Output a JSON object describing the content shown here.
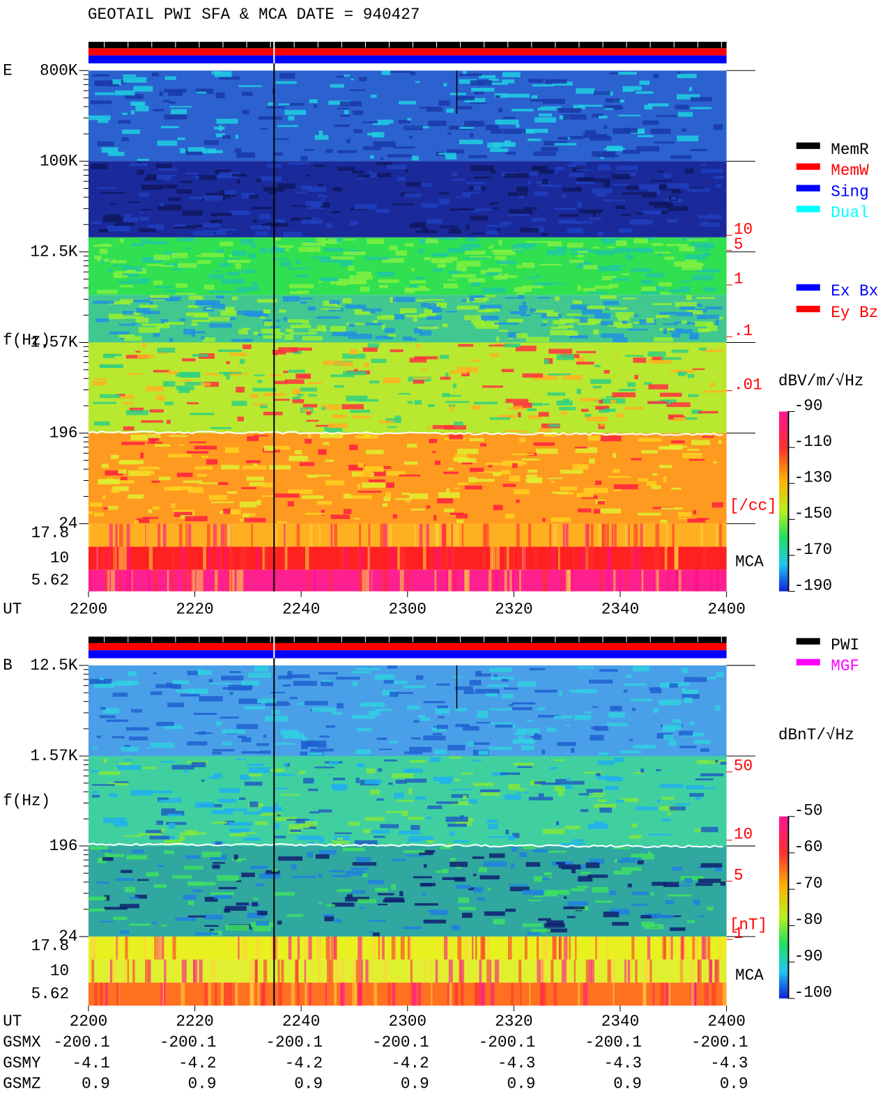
{
  "title": "GEOTAIL  PWI SFA & MCA   DATE = 940427",
  "panels": [
    {
      "label": "E",
      "freq_label": "f(Hz)",
      "freq_ticks": [
        "800K",
        "100K",
        "12.5K",
        "1.57K",
        "196",
        "24"
      ],
      "mca_ticks": [
        "17.8",
        "10",
        "5.62"
      ],
      "mca_label": "MCA",
      "density_ticks": [
        "10",
        "5",
        "1",
        ".1",
        ".01"
      ],
      "density_unit": "[/cc]",
      "colorbar_unit": "dBV/m/√Hz",
      "colorbar_ticks": [
        -90,
        -110,
        -130,
        -150,
        -170,
        -190
      ],
      "time_label": "UT",
      "time_ticks": [
        "2200",
        "2220",
        "2240",
        "2300",
        "2320",
        "2340",
        "2400"
      ]
    },
    {
      "label": "B",
      "freq_label": "f(Hz)",
      "freq_ticks": [
        "12.5K",
        "1.57K",
        "196",
        "24"
      ],
      "mca_ticks": [
        "17.8",
        "10",
        "5.62"
      ],
      "mca_label": "MCA",
      "density_ticks": [
        "50",
        "10",
        "5",
        "1"
      ],
      "density_unit": "[nT]",
      "colorbar_unit": "dBnT/√Hz",
      "colorbar_ticks": [
        -50,
        -60,
        -70,
        -80,
        -90,
        -100
      ],
      "time_label": "UT",
      "time_ticks": [
        "2200",
        "2220",
        "2240",
        "2300",
        "2320",
        "2340",
        "2400"
      ]
    }
  ],
  "legend_modes": [
    {
      "label": "MemR",
      "color": "#000000"
    },
    {
      "label": "MemW",
      "color": "#ff0000"
    },
    {
      "label": "Sing",
      "color": "#0000ff"
    },
    {
      "label": "Dual",
      "color": "#00ffff"
    }
  ],
  "legend_components": [
    {
      "label": "Ex Bx",
      "color": "#0000ff"
    },
    {
      "label": "Ey Bz",
      "color": "#ff0000"
    }
  ],
  "legend_sources": [
    {
      "label": "PWI",
      "color": "#000000"
    },
    {
      "label": "MGF",
      "color": "#ff00ff"
    }
  ],
  "orbit": {
    "labels": [
      "GSMX",
      "GSMY",
      "GSMZ"
    ],
    "rows": [
      [
        -200.1,
        -200.1,
        -200.1,
        -200.1,
        -200.1,
        -200.1,
        -200.1
      ],
      [
        -4.1,
        -4.2,
        -4.2,
        -4.2,
        -4.3,
        -4.3,
        -4.3
      ],
      [
        0.9,
        0.9,
        0.9,
        0.9,
        0.9,
        0.9,
        0.9
      ]
    ]
  }
}
